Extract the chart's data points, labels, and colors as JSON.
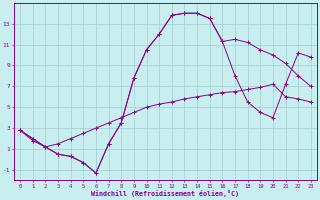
{
  "bg_color": "#c8eef0",
  "line_color": "#880088",
  "grid_color": "#a0cdd0",
  "line1_y": [
    2.8,
    2.0,
    1.2,
    0.5,
    0.3,
    -0.3,
    -1.3,
    1.5,
    3.5,
    7.8,
    10.5,
    12.0,
    13.8,
    14.0,
    14.0,
    13.5,
    11.3,
    8.0,
    5.5,
    4.5,
    4.0,
    7.2,
    10.2,
    9.8
  ],
  "line2_y": [
    2.8,
    2.0,
    1.2,
    0.5,
    0.3,
    -0.3,
    -1.3,
    1.5,
    3.5,
    7.8,
    10.5,
    12.0,
    13.8,
    14.0,
    14.0,
    13.5,
    11.3,
    11.5,
    11.2,
    10.5,
    10.0,
    9.2,
    8.0,
    7.0
  ],
  "line3_y": [
    2.8,
    1.8,
    1.2,
    1.5,
    2.0,
    2.5,
    3.0,
    3.5,
    4.0,
    4.5,
    5.0,
    5.3,
    5.5,
    5.8,
    6.0,
    6.2,
    6.4,
    6.5,
    6.7,
    6.9,
    7.2,
    6.0,
    5.8,
    5.5
  ],
  "xlabel": "Windchill (Refroidissement éolien,°C)",
  "xlim": [
    -0.5,
    23.5
  ],
  "ylim": [
    -2.0,
    15.0
  ],
  "yticks": [
    -1,
    1,
    3,
    5,
    7,
    9,
    11,
    13
  ],
  "xticks": [
    0,
    1,
    2,
    3,
    4,
    5,
    6,
    7,
    8,
    9,
    10,
    11,
    12,
    13,
    14,
    15,
    16,
    17,
    18,
    19,
    20,
    21,
    22,
    23
  ]
}
